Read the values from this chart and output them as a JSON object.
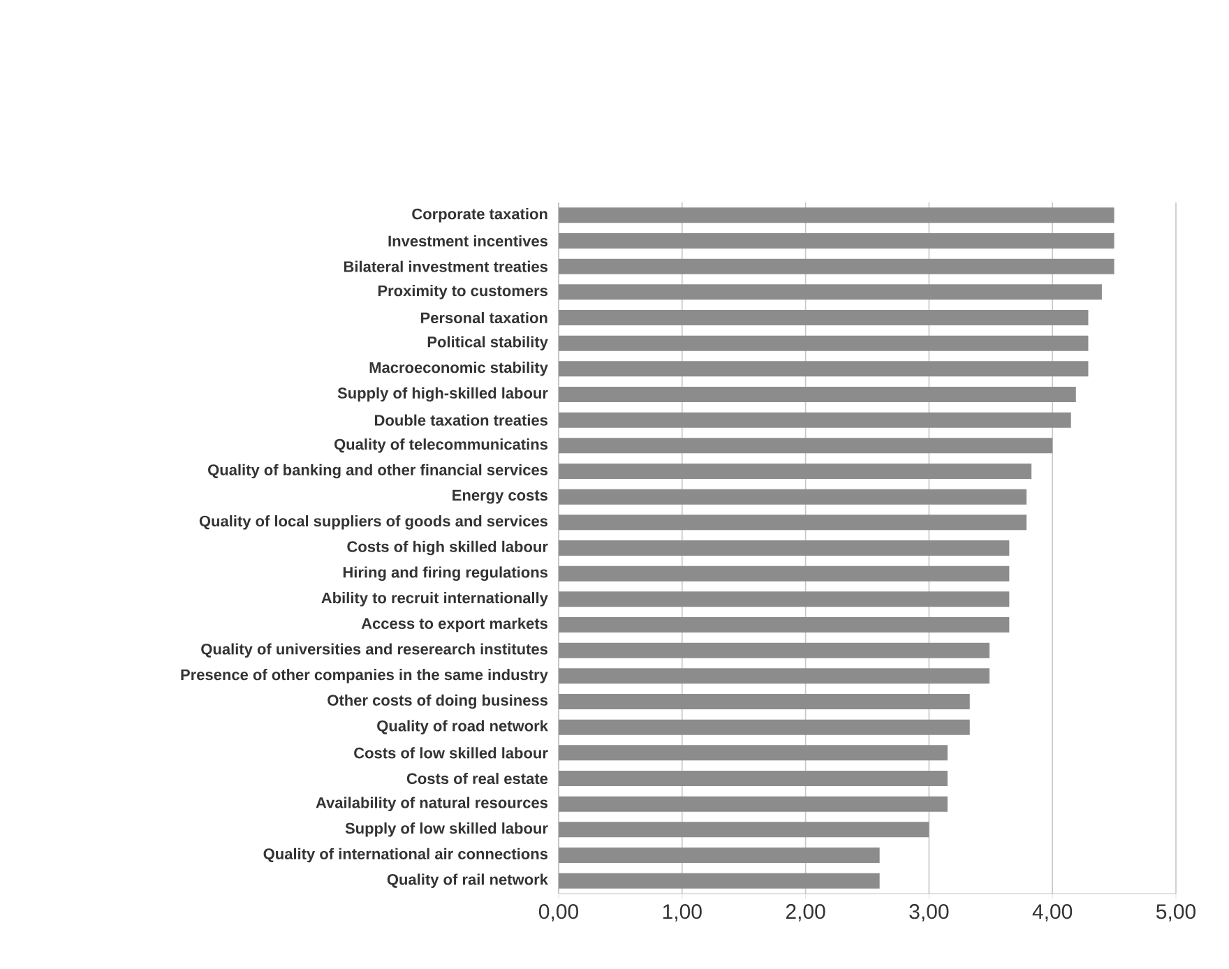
{
  "chart_data": {
    "type": "bar",
    "orientation": "horizontal",
    "categories": [
      "Corporate taxation",
      "Investment incentives",
      "Bilateral investment treaties",
      "Proximity to customers",
      "Personal taxation",
      "Political stability",
      "Macroeconomic stability",
      "Supply of high-skilled labour",
      "Double taxation treaties",
      "Quality of telecommunicatins",
      "Quality of banking and other financial services",
      "Energy costs",
      "Quality of local suppliers of goods and services",
      "Costs of high skilled labour",
      "Hiring and firing regulations",
      "Ability to recruit internationally",
      "Access to export markets",
      "Quality of universities and reserearch institutes",
      "Presence of other companies in the same industry",
      "Other costs of doing business",
      "Quality of road network",
      "Costs of low skilled labour",
      "Costs of real estate",
      "Availability of natural resources",
      "Supply of low skilled labour",
      "Quality of international air connections",
      "Quality of rail network"
    ],
    "values": [
      4.5,
      4.5,
      4.5,
      4.4,
      4.29,
      4.29,
      4.29,
      4.19,
      4.15,
      4.0,
      3.83,
      3.79,
      3.79,
      3.65,
      3.65,
      3.65,
      3.65,
      3.49,
      3.49,
      3.33,
      3.33,
      3.15,
      3.15,
      3.15,
      3.0,
      2.6,
      2.6
    ],
    "color": "#8c8c8c",
    "xlim": [
      0,
      5
    ],
    "xticks": [
      {
        "value": 0,
        "label": "0,00"
      },
      {
        "value": 1,
        "label": "1,00"
      },
      {
        "value": 2,
        "label": "2,00"
      },
      {
        "value": 3,
        "label": "3,00"
      },
      {
        "value": 4,
        "label": "4,00"
      },
      {
        "value": 5,
        "label": "5,00"
      }
    ],
    "grid": "x"
  }
}
